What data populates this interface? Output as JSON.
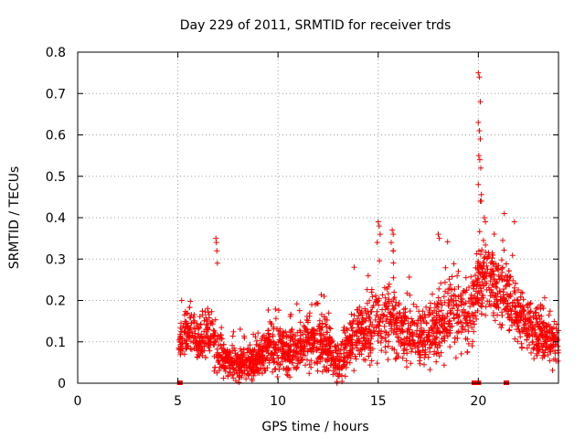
{
  "chart_data": {
    "type": "scatter",
    "title": "Day 229 of 2011, SRMTID for receiver trds",
    "xlabel": "GPS time / hours",
    "ylabel": "SRMTID / TECUs",
    "xlim": [
      0,
      24
    ],
    "ylim": [
      0,
      0.8
    ],
    "xticks": [
      0,
      5,
      10,
      15,
      20
    ],
    "xtick_labels": [
      "0",
      "5",
      "10",
      "15",
      "20"
    ],
    "yticks": [
      0,
      0.1,
      0.2,
      0.3,
      0.4,
      0.5,
      0.6,
      0.7,
      0.8
    ],
    "ytick_labels": [
      "0",
      "0.1",
      "0.2",
      "0.3",
      "0.4",
      "0.5",
      "0.6",
      "0.7",
      "0.8"
    ],
    "grid": true,
    "marker": "plus",
    "color": "#ff0000",
    "zero_markers_x": [
      5.1,
      19.8,
      19.9,
      20.0,
      21.4
    ],
    "activity_profile": [
      {
        "t": 5.0,
        "base": 0.1,
        "spread": 0.05
      },
      {
        "t": 5.5,
        "base": 0.13,
        "spread": 0.06
      },
      {
        "t": 6.0,
        "base": 0.1,
        "spread": 0.05
      },
      {
        "t": 6.5,
        "base": 0.12,
        "spread": 0.06
      },
      {
        "t": 7.0,
        "base": 0.08,
        "spread": 0.05
      },
      {
        "t": 7.5,
        "base": 0.05,
        "spread": 0.04
      },
      {
        "t": 8.0,
        "base": 0.05,
        "spread": 0.04
      },
      {
        "t": 8.5,
        "base": 0.05,
        "spread": 0.04
      },
      {
        "t": 9.0,
        "base": 0.06,
        "spread": 0.04
      },
      {
        "t": 9.5,
        "base": 0.09,
        "spread": 0.05
      },
      {
        "t": 10.0,
        "base": 0.08,
        "spread": 0.05
      },
      {
        "t": 10.5,
        "base": 0.07,
        "spread": 0.05
      },
      {
        "t": 11.0,
        "base": 0.09,
        "spread": 0.05
      },
      {
        "t": 11.5,
        "base": 0.1,
        "spread": 0.05
      },
      {
        "t": 12.0,
        "base": 0.1,
        "spread": 0.06
      },
      {
        "t": 12.5,
        "base": 0.09,
        "spread": 0.05
      },
      {
        "t": 13.0,
        "base": 0.04,
        "spread": 0.04
      },
      {
        "t": 13.5,
        "base": 0.09,
        "spread": 0.05
      },
      {
        "t": 14.0,
        "base": 0.12,
        "spread": 0.06
      },
      {
        "t": 14.5,
        "base": 0.12,
        "spread": 0.06
      },
      {
        "t": 15.0,
        "base": 0.16,
        "spread": 0.08
      },
      {
        "t": 15.5,
        "base": 0.15,
        "spread": 0.08
      },
      {
        "t": 16.0,
        "base": 0.14,
        "spread": 0.07
      },
      {
        "t": 16.5,
        "base": 0.12,
        "spread": 0.06
      },
      {
        "t": 17.0,
        "base": 0.11,
        "spread": 0.06
      },
      {
        "t": 17.5,
        "base": 0.1,
        "spread": 0.05
      },
      {
        "t": 18.0,
        "base": 0.15,
        "spread": 0.08
      },
      {
        "t": 18.5,
        "base": 0.18,
        "spread": 0.09
      },
      {
        "t": 19.0,
        "base": 0.17,
        "spread": 0.09
      },
      {
        "t": 19.5,
        "base": 0.16,
        "spread": 0.08
      },
      {
        "t": 20.0,
        "base": 0.24,
        "spread": 0.08
      },
      {
        "t": 20.5,
        "base": 0.26,
        "spread": 0.08
      },
      {
        "t": 21.0,
        "base": 0.22,
        "spread": 0.08
      },
      {
        "t": 21.5,
        "base": 0.22,
        "spread": 0.08
      },
      {
        "t": 22.0,
        "base": 0.15,
        "spread": 0.06
      },
      {
        "t": 22.5,
        "base": 0.14,
        "spread": 0.06
      },
      {
        "t": 23.0,
        "base": 0.12,
        "spread": 0.06
      },
      {
        "t": 23.5,
        "base": 0.1,
        "spread": 0.05
      },
      {
        "t": 24.0,
        "base": 0.08,
        "spread": 0.05
      }
    ],
    "spikes": [
      {
        "x": 6.9,
        "y": 0.35
      },
      {
        "x": 6.92,
        "y": 0.34
      },
      {
        "x": 6.95,
        "y": 0.32
      },
      {
        "x": 6.97,
        "y": 0.29
      },
      {
        "x": 15.0,
        "y": 0.39
      },
      {
        "x": 15.05,
        "y": 0.38
      },
      {
        "x": 15.1,
        "y": 0.36
      },
      {
        "x": 14.95,
        "y": 0.34
      },
      {
        "x": 15.7,
        "y": 0.37
      },
      {
        "x": 15.75,
        "y": 0.36
      },
      {
        "x": 15.65,
        "y": 0.34
      },
      {
        "x": 18.0,
        "y": 0.36
      },
      {
        "x": 18.05,
        "y": 0.35
      },
      {
        "x": 20.0,
        "y": 0.75
      },
      {
        "x": 20.05,
        "y": 0.74
      },
      {
        "x": 20.1,
        "y": 0.68
      },
      {
        "x": 20.0,
        "y": 0.63
      },
      {
        "x": 20.05,
        "y": 0.61
      },
      {
        "x": 20.1,
        "y": 0.59
      },
      {
        "x": 20.02,
        "y": 0.55
      },
      {
        "x": 20.07,
        "y": 0.54
      },
      {
        "x": 20.12,
        "y": 0.52
      },
      {
        "x": 20.0,
        "y": 0.48
      },
      {
        "x": 20.1,
        "y": 0.44
      },
      {
        "x": 20.15,
        "y": 0.44
      },
      {
        "x": 20.3,
        "y": 0.4
      },
      {
        "x": 20.35,
        "y": 0.39
      },
      {
        "x": 21.3,
        "y": 0.41
      },
      {
        "x": 21.8,
        "y": 0.39
      },
      {
        "x": 13.8,
        "y": 0.28
      },
      {
        "x": 12.3,
        "y": 0.21
      },
      {
        "x": 14.5,
        "y": 0.26
      }
    ]
  }
}
